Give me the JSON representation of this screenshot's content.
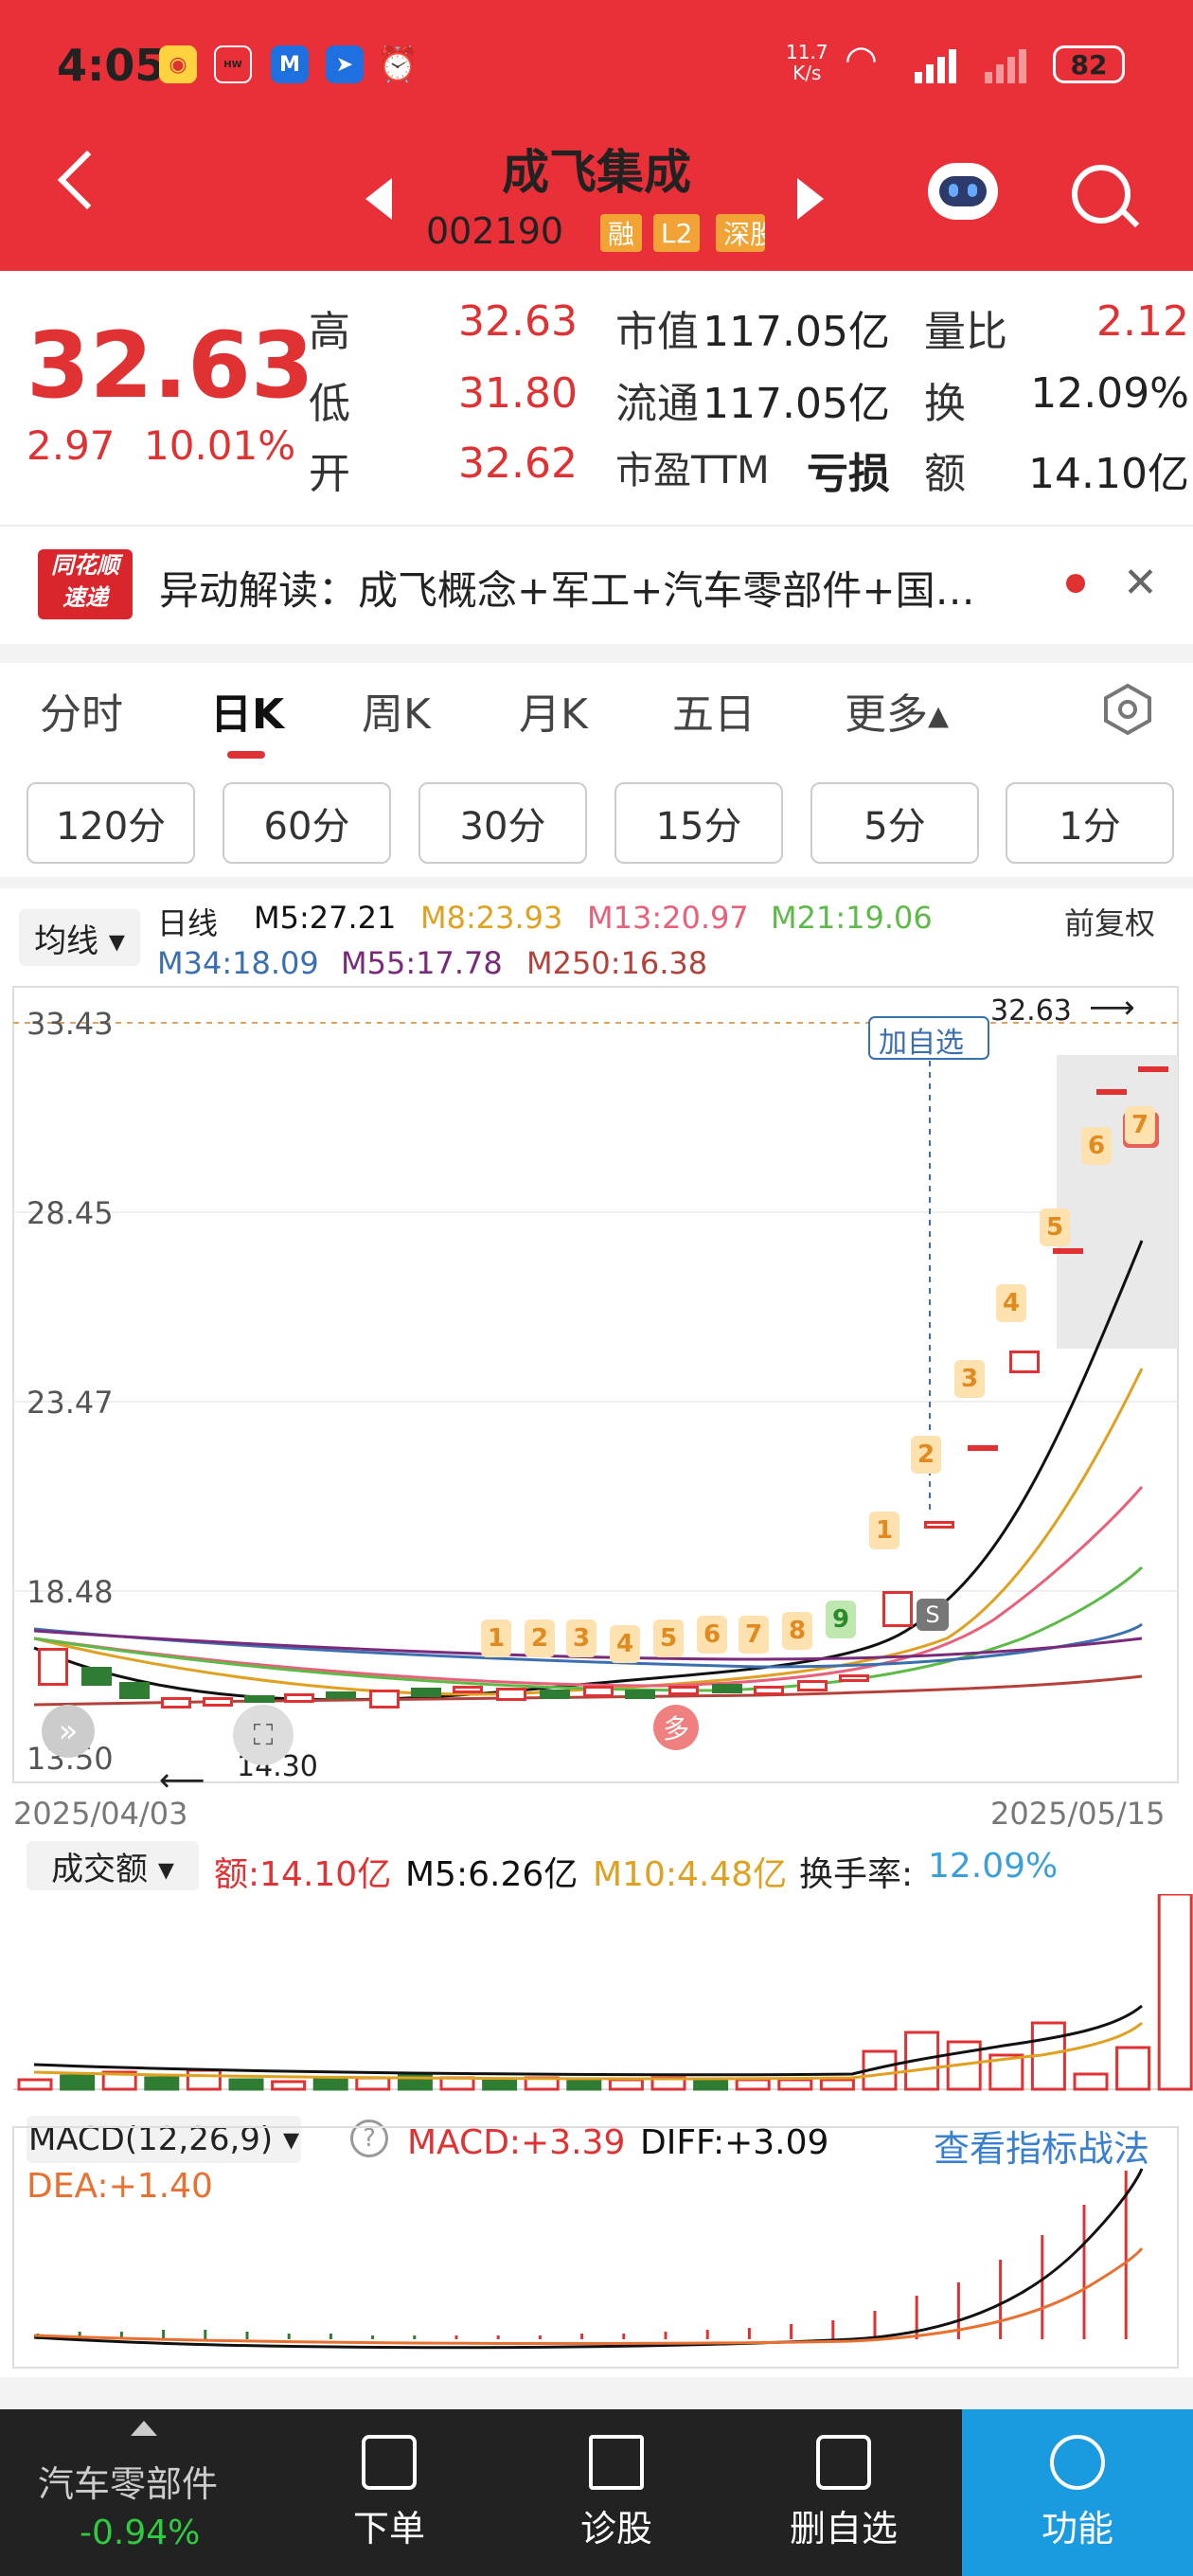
{
  "status_bar": {
    "time": "4:05",
    "net_speed": "11.7\nK/s",
    "battery": "82"
  },
  "header": {
    "title": "成飞集成",
    "code": "002190",
    "badges": [
      "融",
      "L2",
      "深股"
    ]
  },
  "quote": {
    "price": "32.63",
    "change": "2.97",
    "change_pct": "10.01%",
    "rows": [
      [
        {
          "label": "高",
          "value": "32.63"
        },
        {
          "label": "市值",
          "value": "117.05亿"
        },
        {
          "label": "量比",
          "value": "2.12"
        }
      ],
      [
        {
          "label": "低",
          "value": "31.80"
        },
        {
          "label": "流通",
          "value": "117.05亿"
        },
        {
          "label": "换",
          "value": "12.09%"
        }
      ],
      [
        {
          "label": "开",
          "value": "32.62"
        },
        {
          "label": "市盈TTM",
          "value": "亏损"
        },
        {
          "label": "额",
          "value": "14.10亿"
        }
      ]
    ]
  },
  "notice": {
    "logo_top": "同花顺",
    "logo_bottom": "速递",
    "text": "异动解读：成飞概念+军工+汽车零部件+国…"
  },
  "tabs": [
    "分时",
    "日K",
    "周K",
    "月K",
    "五日",
    "更多▴"
  ],
  "periods": [
    "120分",
    "60分",
    "30分",
    "15分",
    "5分",
    "1分"
  ],
  "ma_legend": {
    "selector": "均线 ▾",
    "label": "日线",
    "adjust": "前复权",
    "items": [
      {
        "text": "M5:27.21",
        "color": "#111111"
      },
      {
        "text": "M8:23.93",
        "color": "#e0a020"
      },
      {
        "text": "M13:20.97",
        "color": "#e8607a"
      },
      {
        "text": "M21:19.06",
        "color": "#5cba47"
      },
      {
        "text": "M34:18.09",
        "color": "#3a6fb0"
      },
      {
        "text": "M55:17.78",
        "color": "#7a2a7a"
      },
      {
        "text": "M250:16.38",
        "color": "#b4423a"
      }
    ]
  },
  "kline": {
    "y_ticks": [
      "33.43",
      "28.45",
      "23.47",
      "18.48",
      "13.50"
    ],
    "high_label": "32.63",
    "low_label": "14.30",
    "date_start": "2025/04/03",
    "date_end": "2025/05/15",
    "add_fav": "加自选",
    "badge_multi": "多",
    "seq_numbers": [
      "1",
      "2",
      "3",
      "4",
      "5",
      "6",
      "7",
      "8",
      "9",
      "1",
      "2",
      "3",
      "4",
      "5",
      "6",
      "7"
    ]
  },
  "volume": {
    "selector": "成交额 ▾",
    "amount": "额:14.10亿",
    "m5": "M5:6.26亿",
    "m10": "M10:4.48亿",
    "turnover_label": "换手率:",
    "turnover": "12.09%"
  },
  "macd": {
    "selector": "MACD(12,26,9) ▾",
    "help": "?",
    "macd": "MACD:+3.39",
    "diff": "DIFF:+3.09",
    "dea": "DEA:+1.40",
    "link": "查看指标战法"
  },
  "bottom_nav": {
    "sector": "汽车零部件",
    "sector_change": "-0.94%",
    "items": [
      "下单",
      "诊股",
      "删自选",
      "功能"
    ]
  }
}
